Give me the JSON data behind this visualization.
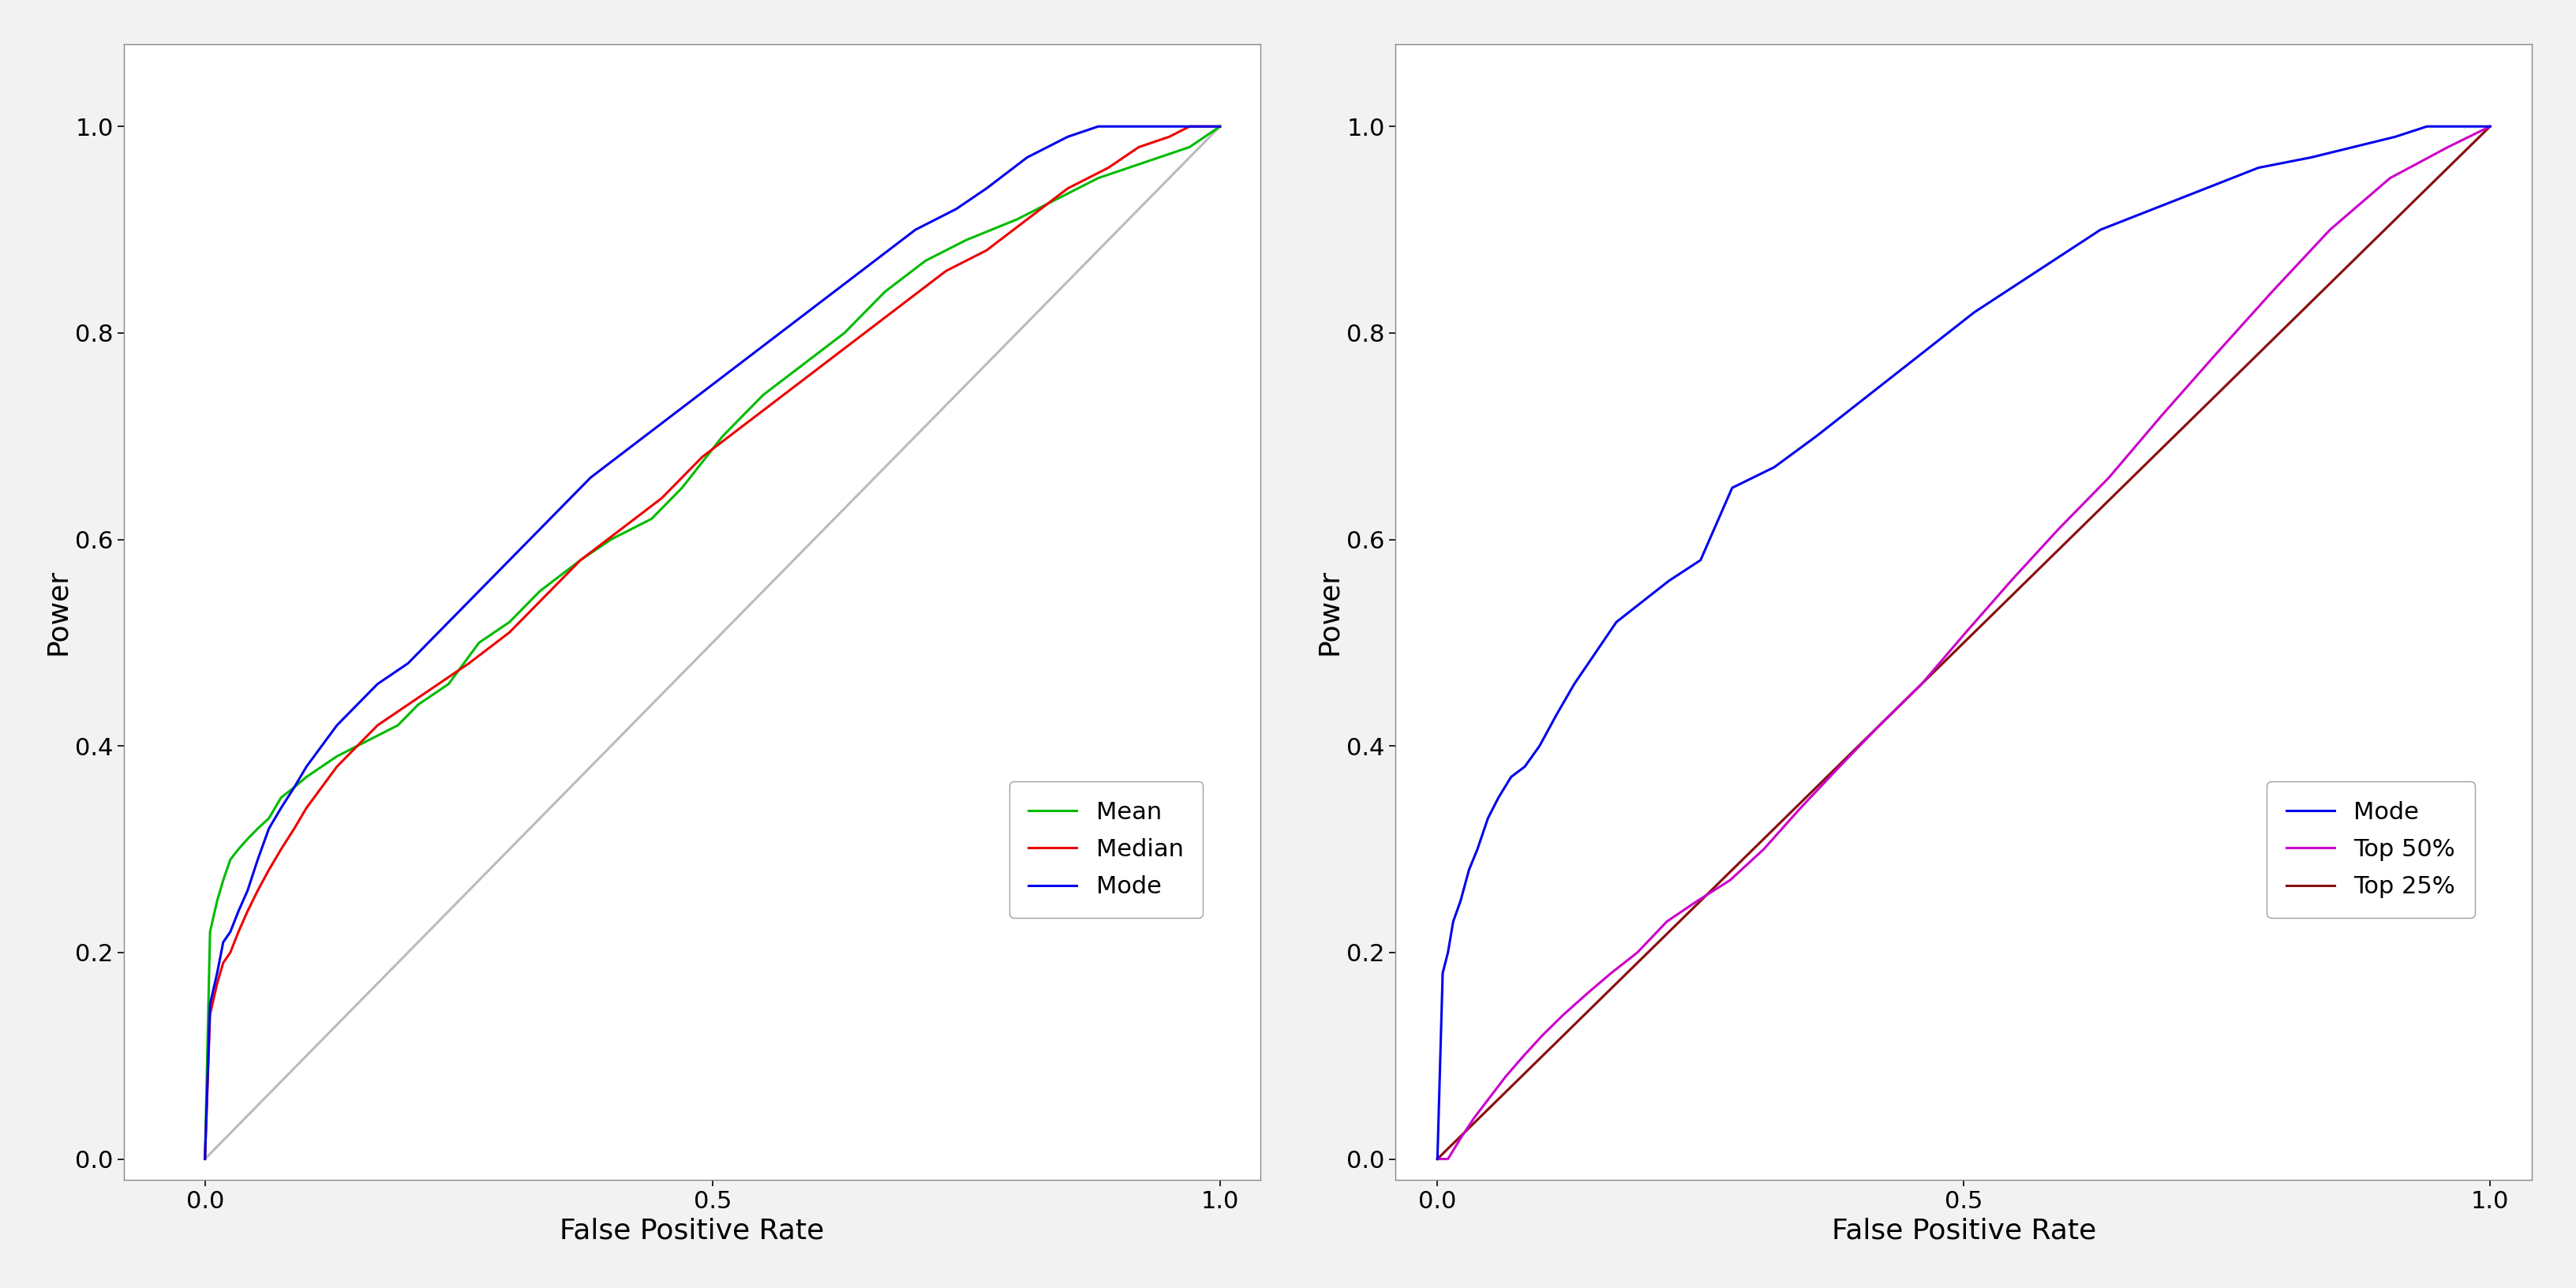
{
  "plot1": {
    "xlabel": "False Positive Rate",
    "ylabel": "Power",
    "xlim": [
      -0.08,
      1.04
    ],
    "ylim": [
      -0.02,
      1.08
    ],
    "xticks": [
      0.0,
      0.5,
      1.0
    ],
    "yticks": [
      0.0,
      0.2,
      0.4,
      0.6,
      0.8,
      1.0
    ],
    "diag_color": "#bbbbbb",
    "legend_labels": [
      "Mean",
      "Median",
      "Mode"
    ],
    "legend_colors": [
      "#00bb00",
      "#ee0000",
      "#0000ee"
    ],
    "mean_x": [
      0,
      0,
      0.005,
      0.005,
      0.012,
      0.012,
      0.018,
      0.018,
      0.025,
      0.025,
      0.033,
      0.033,
      0.042,
      0.042,
      0.052,
      0.052,
      0.063,
      0.063,
      0.075,
      0.075,
      0.088,
      0.088,
      0.1,
      0.1,
      0.115,
      0.115,
      0.13,
      0.13,
      0.15,
      0.15,
      0.17,
      0.17,
      0.19,
      0.19,
      0.21,
      0.21,
      0.24,
      0.24,
      0.27,
      0.27,
      0.3,
      0.3,
      0.33,
      0.33,
      0.37,
      0.37,
      0.4,
      0.4,
      0.44,
      0.44,
      0.47,
      0.47,
      0.51,
      0.51,
      0.55,
      0.55,
      0.59,
      0.59,
      0.63,
      0.63,
      0.67,
      0.67,
      0.71,
      0.71,
      0.75,
      0.75,
      0.8,
      0.8,
      0.84,
      0.84,
      0.88,
      0.88,
      0.91,
      0.91,
      0.94,
      0.94,
      0.97,
      0.97,
      1.0,
      1.0
    ],
    "mean_y": [
      0,
      0,
      0.22,
      0.22,
      0.25,
      0.25,
      0.27,
      0.27,
      0.29,
      0.29,
      0.3,
      0.3,
      0.31,
      0.31,
      0.32,
      0.32,
      0.33,
      0.33,
      0.35,
      0.35,
      0.36,
      0.36,
      0.37,
      0.37,
      0.38,
      0.38,
      0.39,
      0.39,
      0.4,
      0.4,
      0.41,
      0.41,
      0.42,
      0.42,
      0.44,
      0.44,
      0.46,
      0.46,
      0.5,
      0.5,
      0.52,
      0.52,
      0.55,
      0.55,
      0.58,
      0.58,
      0.6,
      0.6,
      0.62,
      0.62,
      0.65,
      0.65,
      0.7,
      0.7,
      0.74,
      0.74,
      0.77,
      0.77,
      0.8,
      0.8,
      0.84,
      0.84,
      0.87,
      0.87,
      0.89,
      0.89,
      0.91,
      0.91,
      0.93,
      0.93,
      0.95,
      0.95,
      0.96,
      0.96,
      0.97,
      0.97,
      0.98,
      0.98,
      1.0,
      1.0
    ],
    "median_x": [
      0,
      0,
      0.005,
      0.005,
      0.012,
      0.012,
      0.018,
      0.018,
      0.025,
      0.025,
      0.033,
      0.033,
      0.042,
      0.042,
      0.052,
      0.052,
      0.063,
      0.063,
      0.075,
      0.075,
      0.088,
      0.088,
      0.1,
      0.1,
      0.115,
      0.115,
      0.13,
      0.13,
      0.15,
      0.15,
      0.17,
      0.17,
      0.2,
      0.2,
      0.23,
      0.23,
      0.26,
      0.26,
      0.3,
      0.3,
      0.34,
      0.34,
      0.37,
      0.37,
      0.41,
      0.41,
      0.45,
      0.45,
      0.49,
      0.49,
      0.53,
      0.53,
      0.57,
      0.57,
      0.61,
      0.61,
      0.65,
      0.65,
      0.69,
      0.69,
      0.73,
      0.73,
      0.77,
      0.77,
      0.81,
      0.81,
      0.85,
      0.85,
      0.89,
      0.89,
      0.92,
      0.92,
      0.95,
      0.95,
      0.97,
      0.97,
      1.0,
      1.0
    ],
    "median_y": [
      0,
      0,
      0.14,
      0.14,
      0.17,
      0.17,
      0.19,
      0.19,
      0.2,
      0.2,
      0.22,
      0.22,
      0.24,
      0.24,
      0.26,
      0.26,
      0.28,
      0.28,
      0.3,
      0.3,
      0.32,
      0.32,
      0.34,
      0.34,
      0.36,
      0.36,
      0.38,
      0.38,
      0.4,
      0.4,
      0.42,
      0.42,
      0.44,
      0.44,
      0.46,
      0.46,
      0.48,
      0.48,
      0.51,
      0.51,
      0.55,
      0.55,
      0.58,
      0.58,
      0.61,
      0.61,
      0.64,
      0.64,
      0.68,
      0.68,
      0.71,
      0.71,
      0.74,
      0.74,
      0.77,
      0.77,
      0.8,
      0.8,
      0.83,
      0.83,
      0.86,
      0.86,
      0.88,
      0.88,
      0.91,
      0.91,
      0.94,
      0.94,
      0.96,
      0.96,
      0.98,
      0.98,
      0.99,
      0.99,
      1.0,
      1.0,
      1.0,
      1.0
    ],
    "mode_x": [
      0,
      0,
      0.005,
      0.005,
      0.012,
      0.012,
      0.018,
      0.018,
      0.025,
      0.025,
      0.033,
      0.033,
      0.042,
      0.042,
      0.052,
      0.052,
      0.063,
      0.063,
      0.075,
      0.075,
      0.088,
      0.088,
      0.1,
      0.1,
      0.115,
      0.115,
      0.13,
      0.13,
      0.15,
      0.15,
      0.17,
      0.17,
      0.2,
      0.2,
      0.23,
      0.23,
      0.27,
      0.27,
      0.31,
      0.31,
      0.35,
      0.35,
      0.38,
      0.38,
      0.42,
      0.42,
      0.46,
      0.46,
      0.5,
      0.5,
      0.54,
      0.54,
      0.58,
      0.58,
      0.62,
      0.62,
      0.66,
      0.66,
      0.7,
      0.7,
      0.74,
      0.74,
      0.77,
      0.77,
      0.81,
      0.81,
      0.85,
      0.85,
      0.88,
      0.88,
      0.91,
      0.91,
      0.94,
      0.94,
      0.97,
      0.97,
      1.0,
      1.0
    ],
    "mode_y": [
      0,
      0,
      0.15,
      0.15,
      0.18,
      0.18,
      0.21,
      0.21,
      0.22,
      0.22,
      0.24,
      0.24,
      0.26,
      0.26,
      0.29,
      0.29,
      0.32,
      0.32,
      0.34,
      0.34,
      0.36,
      0.36,
      0.38,
      0.38,
      0.4,
      0.4,
      0.42,
      0.42,
      0.44,
      0.44,
      0.46,
      0.46,
      0.48,
      0.48,
      0.51,
      0.51,
      0.55,
      0.55,
      0.59,
      0.59,
      0.63,
      0.63,
      0.66,
      0.66,
      0.69,
      0.69,
      0.72,
      0.72,
      0.75,
      0.75,
      0.78,
      0.78,
      0.81,
      0.81,
      0.84,
      0.84,
      0.87,
      0.87,
      0.9,
      0.9,
      0.92,
      0.92,
      0.94,
      0.94,
      0.97,
      0.97,
      0.99,
      0.99,
      1.0,
      1.0,
      1.0,
      1.0,
      1.0,
      1.0,
      1.0,
      1.0,
      1.0,
      1.0
    ]
  },
  "plot2": {
    "xlabel": "False Positive Rate",
    "ylabel": "Power",
    "xlim": [
      -0.04,
      1.04
    ],
    "ylim": [
      -0.02,
      1.08
    ],
    "xticks": [
      0.0,
      0.5,
      1.0
    ],
    "yticks": [
      0.0,
      0.2,
      0.4,
      0.6,
      0.8,
      1.0
    ],
    "diag_color": "#bbbbbb",
    "legend_labels": [
      "Mode",
      "Top 50%",
      "Top 25%"
    ],
    "legend_colors": [
      "#0000ee",
      "#cc00cc",
      "#8b1010"
    ],
    "mode_x": [
      0,
      0,
      0.005,
      0.005,
      0.01,
      0.01,
      0.015,
      0.015,
      0.022,
      0.022,
      0.03,
      0.03,
      0.038,
      0.038,
      0.048,
      0.048,
      0.058,
      0.058,
      0.07,
      0.07,
      0.083,
      0.083,
      0.097,
      0.097,
      0.113,
      0.113,
      0.13,
      0.13,
      0.15,
      0.15,
      0.17,
      0.17,
      0.195,
      0.195,
      0.22,
      0.22,
      0.25,
      0.25,
      0.28,
      0.28,
      0.32,
      0.32,
      0.36,
      0.36,
      0.41,
      0.41,
      0.46,
      0.46,
      0.51,
      0.51,
      0.57,
      0.57,
      0.63,
      0.63,
      0.68,
      0.68,
      0.73,
      0.73,
      0.78,
      0.78,
      0.83,
      0.83,
      0.87,
      0.87,
      0.91,
      0.91,
      0.94,
      0.94,
      0.97,
      0.97,
      1.0,
      1.0
    ],
    "mode_y": [
      0,
      0,
      0.18,
      0.18,
      0.2,
      0.2,
      0.23,
      0.23,
      0.25,
      0.25,
      0.28,
      0.28,
      0.3,
      0.3,
      0.33,
      0.33,
      0.35,
      0.35,
      0.37,
      0.37,
      0.38,
      0.38,
      0.4,
      0.4,
      0.43,
      0.43,
      0.46,
      0.46,
      0.49,
      0.49,
      0.52,
      0.52,
      0.54,
      0.54,
      0.56,
      0.56,
      0.58,
      0.58,
      0.65,
      0.65,
      0.67,
      0.67,
      0.7,
      0.7,
      0.74,
      0.74,
      0.78,
      0.78,
      0.82,
      0.82,
      0.86,
      0.86,
      0.9,
      0.9,
      0.92,
      0.92,
      0.94,
      0.94,
      0.96,
      0.96,
      0.97,
      0.97,
      0.98,
      0.98,
      0.99,
      0.99,
      1.0,
      1.0,
      1.0,
      1.0,
      1.0,
      1.0
    ],
    "top50_x": [
      0,
      0,
      0.01,
      0.01,
      0.022,
      0.022,
      0.035,
      0.035,
      0.05,
      0.05,
      0.065,
      0.065,
      0.082,
      0.082,
      0.1,
      0.1,
      0.12,
      0.12,
      0.142,
      0.142,
      0.165,
      0.165,
      0.19,
      0.19,
      0.218,
      0.218,
      0.247,
      0.247,
      0.278,
      0.278,
      0.31,
      0.31,
      0.345,
      0.345,
      0.382,
      0.382,
      0.42,
      0.42,
      0.46,
      0.46,
      0.502,
      0.502,
      0.545,
      0.545,
      0.59,
      0.59,
      0.638,
      0.638,
      0.688,
      0.688,
      0.74,
      0.74,
      0.793,
      0.793,
      0.848,
      0.848,
      0.905,
      0.905,
      0.96,
      0.96,
      1.0,
      1.0
    ],
    "top50_y": [
      0,
      0,
      0.0,
      0.0,
      0.02,
      0.02,
      0.04,
      0.04,
      0.06,
      0.06,
      0.08,
      0.08,
      0.1,
      0.1,
      0.12,
      0.12,
      0.14,
      0.14,
      0.16,
      0.16,
      0.18,
      0.18,
      0.2,
      0.2,
      0.23,
      0.23,
      0.25,
      0.25,
      0.27,
      0.27,
      0.3,
      0.3,
      0.34,
      0.34,
      0.38,
      0.38,
      0.42,
      0.42,
      0.46,
      0.46,
      0.51,
      0.51,
      0.56,
      0.56,
      0.61,
      0.61,
      0.66,
      0.66,
      0.72,
      0.72,
      0.78,
      0.78,
      0.84,
      0.84,
      0.9,
      0.9,
      0.95,
      0.95,
      0.98,
      0.98,
      1.0,
      1.0
    ],
    "top25_x": [
      0,
      0.05,
      0.1,
      0.15,
      0.2,
      0.25,
      0.3,
      0.35,
      0.4,
      0.45,
      0.5,
      0.55,
      0.6,
      0.65,
      0.7,
      0.75,
      0.8,
      0.85,
      0.9,
      0.95,
      1.0
    ],
    "top25_y": [
      0,
      0.05,
      0.1,
      0.15,
      0.2,
      0.25,
      0.3,
      0.35,
      0.4,
      0.45,
      0.5,
      0.55,
      0.6,
      0.65,
      0.7,
      0.75,
      0.8,
      0.85,
      0.9,
      0.95,
      1.0
    ]
  },
  "fig_bg": "#f2f2f2",
  "axes_bg": "#ffffff",
  "tick_fontsize": 22,
  "label_fontsize": 26,
  "legend_fontsize": 22,
  "linewidth": 2.2
}
